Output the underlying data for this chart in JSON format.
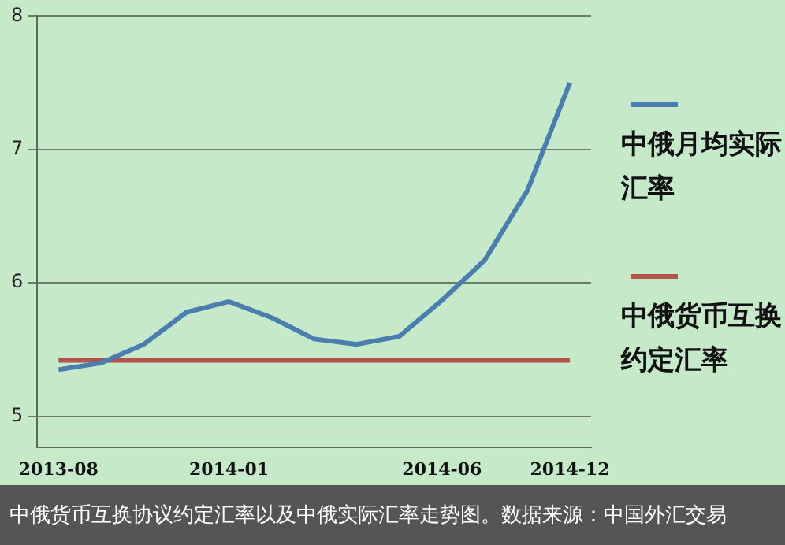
{
  "chart_data": {
    "type": "line",
    "categories": [
      "2013-08",
      null,
      null,
      null,
      "2014-01",
      null,
      null,
      null,
      null,
      "2014-06",
      null,
      null,
      "2014-12"
    ],
    "series": [
      {
        "name": "中俄月均实际汇率",
        "color": "#4a7eb0",
        "values": [
          5.35,
          5.4,
          5.54,
          5.78,
          5.86,
          5.74,
          5.58,
          5.54,
          5.6,
          5.87,
          6.17,
          6.69,
          7.5
        ]
      },
      {
        "name": "中俄货币互换约定汇率",
        "color": "#b4534a",
        "values": [
          5.42,
          5.42,
          5.42,
          5.42,
          5.42,
          5.42,
          5.42,
          5.42,
          5.42,
          5.42,
          5.42,
          5.42,
          5.42
        ]
      }
    ],
    "ylim": [
      4.77,
      8
    ],
    "yticks": [
      5,
      6,
      7,
      8
    ],
    "grid": "y",
    "legend": "right",
    "marker": "none",
    "line_style": "solid",
    "annotations": [
      "中俄货币互换协议约定汇率以及中俄实际汇率走势图。数据来源：中国外汇交易"
    ]
  }
}
